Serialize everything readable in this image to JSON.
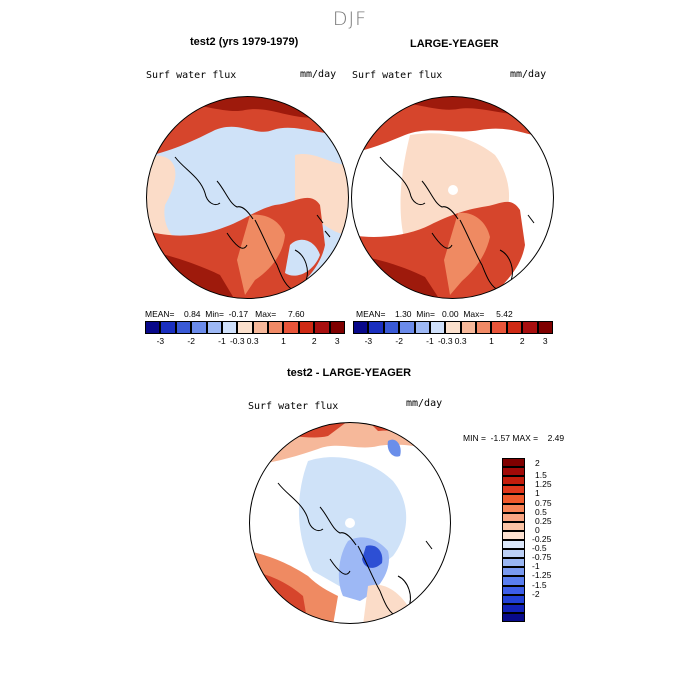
{
  "season": "DJF",
  "panels": [
    {
      "title": "test2 (yrs 1979-1979)",
      "variable": "Surf water flux",
      "units": "mm/day",
      "stats": {
        "mean_label": "MEAN=",
        "mean": "0.84",
        "min_label": "Min=",
        "min": "-0.17",
        "max_label": "Max=",
        "max": "7.60"
      }
    },
    {
      "title": "LARGE-YEAGER",
      "variable": "Surf water flux",
      "units": "mm/day",
      "stats": {
        "mean_label": "MEAN=",
        "mean": "1.30",
        "min_label": "Min=",
        "min": "0.00",
        "max_label": "Max=",
        "max": "5.42"
      }
    },
    {
      "title": "test2 - LARGE-YEAGER",
      "variable": "Surf water flux",
      "units": "mm/day",
      "stats": {
        "min_label": "MIN =",
        "min": "-1.57",
        "max_label": "MAX =",
        "max": "2.49"
      }
    }
  ],
  "colorbar_h": {
    "colors": [
      "#08088a",
      "#1a2fbf",
      "#3a5ad6",
      "#6b8bea",
      "#9db8f5",
      "#cfe0fb",
      "#fbe0cc",
      "#f6b89a",
      "#f18a66",
      "#e8553a",
      "#cf2a14",
      "#a80f0f",
      "#7f0000"
    ],
    "labels": [
      "-3",
      "-2",
      "-1",
      "-0.3",
      "0.3",
      "1",
      "2",
      "3"
    ]
  },
  "colorbar_v": {
    "colors": [
      "#7f0000",
      "#a10a08",
      "#c41d0c",
      "#e0381c",
      "#f05a2c",
      "#f78457",
      "#f9a683",
      "#fbc4a6",
      "#fde2d2",
      "#dce8fb",
      "#bcd0f6",
      "#9ab6f2",
      "#7a9af0",
      "#5a7ef0",
      "#3d5ee8",
      "#2241d6",
      "#1222b8",
      "#080a8a"
    ],
    "labels": [
      "2",
      "1.5",
      "1.25",
      "1",
      "0.75",
      "0.5",
      "0.25",
      "0",
      "-0.25",
      "-0.5",
      "-0.75",
      "-1",
      "-1.25",
      "-1.5",
      "-2"
    ]
  },
  "map_colors": {
    "ocean_light": "#cfe2f8",
    "peach": "#fbdcc8",
    "orange": "#ef8a62",
    "red": "#d6452c",
    "darkred": "#9e1a0c",
    "diff_blue": "#6a8eea",
    "diff_darkblue": "#2d4fd4"
  }
}
